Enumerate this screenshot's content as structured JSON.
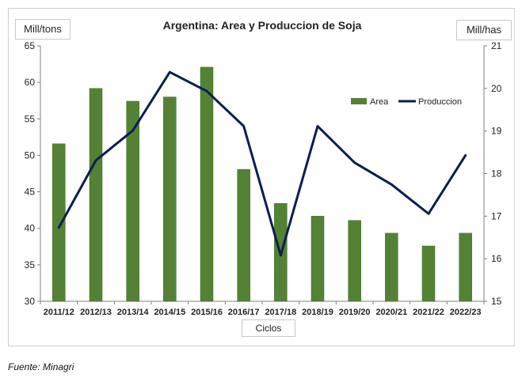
{
  "chart_data": {
    "type": "bar+line",
    "title": "Argentina: Area y Produccion de Soja",
    "xlabel": "Ciclos",
    "ylabel_left": "Mill/tons",
    "ylabel_right": "Mill/has",
    "categories": [
      "2011/12",
      "2012/13",
      "2013/14",
      "2014/15",
      "2015/16",
      "2016/17",
      "2017/18",
      "2018/19",
      "2019/20",
      "2020/21",
      "2021/22",
      "2022/23"
    ],
    "series": [
      {
        "name": "Area",
        "type": "bar",
        "axis": "right",
        "color": "#548235",
        "values": [
          18.7,
          20.0,
          19.7,
          19.8,
          20.5,
          18.1,
          17.3,
          17.0,
          16.9,
          16.6,
          16.3,
          16.6
        ]
      },
      {
        "name": "Produccion",
        "type": "line",
        "axis": "left",
        "color": "#0d1d4f",
        "values": [
          40.1,
          49.3,
          53.4,
          61.4,
          58.8,
          54.0,
          36.3,
          54.0,
          49.0,
          46.0,
          42.0,
          50.0
        ]
      }
    ],
    "ylim_left": [
      30,
      65
    ],
    "yticks_left": [
      30,
      35,
      40,
      45,
      50,
      55,
      60,
      65
    ],
    "ylim_right": [
      15,
      21
    ],
    "yticks_right": [
      15,
      16,
      17,
      18,
      19,
      20,
      21
    ],
    "legend_position": "upper-right-inside",
    "grid": false
  },
  "source_note": "Fuente: Minagri"
}
